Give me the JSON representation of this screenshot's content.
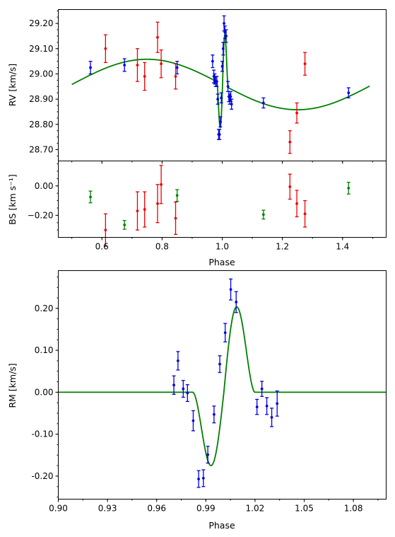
{
  "colors": {
    "red": "#ee0000",
    "blue": "#0000dd",
    "green": "#008000",
    "model": "#008000"
  },
  "chart_data": [
    {
      "id": "rv",
      "type": "scatter",
      "ylabel": "RV [km/s]",
      "xlim": [
        0.455,
        1.545
      ],
      "ylim": [
        28.655,
        29.255
      ],
      "xticks": [],
      "yticks": [
        {
          "v": 28.7,
          "t": "28.70"
        },
        {
          "v": 28.8,
          "t": "28.80"
        },
        {
          "v": 28.9,
          "t": "28.90"
        },
        {
          "v": 29.0,
          "t": "29.00"
        },
        {
          "v": 29.1,
          "t": "29.10"
        },
        {
          "v": 29.2,
          "t": "29.20"
        }
      ],
      "series": [
        {
          "color": "red",
          "points": [
            [
              0.612,
              29.1,
              0.055
            ],
            [
              0.718,
              29.035,
              0.065
            ],
            [
              0.742,
              28.99,
              0.055
            ],
            [
              0.785,
              29.145,
              0.06
            ],
            [
              0.797,
              29.04,
              0.055
            ],
            [
              0.845,
              28.99,
              0.05
            ],
            [
              1.225,
              28.73,
              0.045
            ],
            [
              1.248,
              28.845,
              0.04
            ],
            [
              1.275,
              29.04,
              0.045
            ]
          ]
        },
        {
          "color": "blue",
          "points": [
            [
              0.562,
              29.025,
              0.025
            ],
            [
              0.675,
              29.035,
              0.025
            ],
            [
              0.85,
              29.025,
              0.025
            ],
            [
              0.968,
              29.05,
              0.025
            ],
            [
              0.972,
              28.99,
              0.025
            ],
            [
              0.975,
              28.98,
              0.02
            ],
            [
              0.978,
              28.97,
              0.02
            ],
            [
              0.982,
              28.97,
              0.02
            ],
            [
              0.985,
              28.9,
              0.02
            ],
            [
              0.988,
              28.76,
              0.02
            ],
            [
              0.991,
              28.76,
              0.02
            ],
            [
              0.994,
              28.81,
              0.02
            ],
            [
              0.997,
              28.905,
              0.02
            ],
            [
              1.0,
              29.03,
              0.02
            ],
            [
              1.003,
              29.1,
              0.025
            ],
            [
              1.006,
              29.2,
              0.03
            ],
            [
              1.009,
              29.165,
              0.025
            ],
            [
              1.013,
              29.15,
              0.025
            ],
            [
              1.019,
              28.95,
              0.02
            ],
            [
              1.022,
              28.91,
              0.02
            ],
            [
              1.025,
              28.9,
              0.02
            ],
            [
              1.028,
              28.91,
              0.02
            ],
            [
              1.031,
              28.88,
              0.02
            ],
            [
              1.137,
              28.885,
              0.02
            ],
            [
              1.42,
              28.925,
              0.02
            ]
          ]
        }
      ]
    },
    {
      "id": "bs",
      "type": "scatter",
      "ylabel": "BS [km s⁻¹]",
      "xlabel": "Phase",
      "xlim": [
        0.455,
        1.545
      ],
      "ylim": [
        -0.35,
        0.17
      ],
      "xticks": [
        {
          "v": 0.6,
          "t": "0.6"
        },
        {
          "v": 0.8,
          "t": "0.8"
        },
        {
          "v": 1.0,
          "t": "1.0"
        },
        {
          "v": 1.2,
          "t": "1.2"
        },
        {
          "v": 1.4,
          "t": "1.4"
        }
      ],
      "yticks": [
        {
          "v": -0.2,
          "t": "−0.20"
        },
        {
          "v": 0.0,
          "t": "0.00"
        }
      ],
      "series": [
        {
          "color": "red",
          "points": [
            [
              0.612,
              -0.3,
              0.11
            ],
            [
              0.718,
              -0.17,
              0.13
            ],
            [
              0.742,
              -0.16,
              0.12
            ],
            [
              0.785,
              -0.12,
              0.13
            ],
            [
              0.797,
              0.01,
              0.13
            ],
            [
              0.845,
              -0.22,
              0.11
            ],
            [
              1.225,
              -0.005,
              0.085
            ],
            [
              1.248,
              -0.12,
              0.09
            ],
            [
              1.275,
              -0.19,
              0.09
            ]
          ]
        },
        {
          "color": "green",
          "points": [
            [
              0.562,
              -0.075,
              0.04
            ],
            [
              0.675,
              -0.265,
              0.03
            ],
            [
              0.85,
              -0.065,
              0.04
            ],
            [
              1.137,
              -0.195,
              0.03
            ],
            [
              1.42,
              -0.015,
              0.04
            ]
          ]
        }
      ]
    },
    {
      "id": "rm",
      "type": "scatter",
      "ylabel": "RM [km/s]",
      "xlabel": "Phase",
      "xlim": [
        0.9,
        1.1
      ],
      "ylim": [
        -0.255,
        0.29
      ],
      "xticks": [
        {
          "v": 0.9,
          "t": "0.90"
        },
        {
          "v": 0.93,
          "t": "0.93"
        },
        {
          "v": 0.96,
          "t": "0.96"
        },
        {
          "v": 0.99,
          "t": "0.99"
        },
        {
          "v": 1.02,
          "t": "1.02"
        },
        {
          "v": 1.05,
          "t": "1.05"
        },
        {
          "v": 1.08,
          "t": "1.08"
        }
      ],
      "yticks": [
        {
          "v": -0.2,
          "t": "-0.20"
        },
        {
          "v": -0.1,
          "t": "-0.10"
        },
        {
          "v": 0.0,
          "t": "0.00"
        },
        {
          "v": 0.1,
          "t": "0.10"
        },
        {
          "v": 0.2,
          "t": "0.20"
        }
      ],
      "series": [
        {
          "color": "blue",
          "points": [
            [
              0.9705,
              0.017,
              0.022
            ],
            [
              0.973,
              0.075,
              0.022
            ],
            [
              0.9762,
              0.008,
              0.02
            ],
            [
              0.9788,
              -0.002,
              0.02
            ],
            [
              0.9823,
              -0.068,
              0.024
            ],
            [
              0.9856,
              -0.207,
              0.02
            ],
            [
              0.9885,
              -0.205,
              0.02
            ],
            [
              0.9912,
              -0.149,
              0.02
            ],
            [
              0.995,
              -0.053,
              0.02
            ],
            [
              0.9985,
              0.067,
              0.02
            ],
            [
              1.0018,
              0.142,
              0.022
            ],
            [
              1.0052,
              0.245,
              0.025
            ],
            [
              1.0085,
              0.215,
              0.025
            ],
            [
              1.0212,
              -0.035,
              0.018
            ],
            [
              1.0242,
              0.008,
              0.018
            ],
            [
              1.0272,
              -0.033,
              0.02
            ],
            [
              1.0302,
              -0.06,
              0.022
            ],
            [
              1.0335,
              -0.027,
              0.03
            ]
          ]
        }
      ]
    }
  ]
}
